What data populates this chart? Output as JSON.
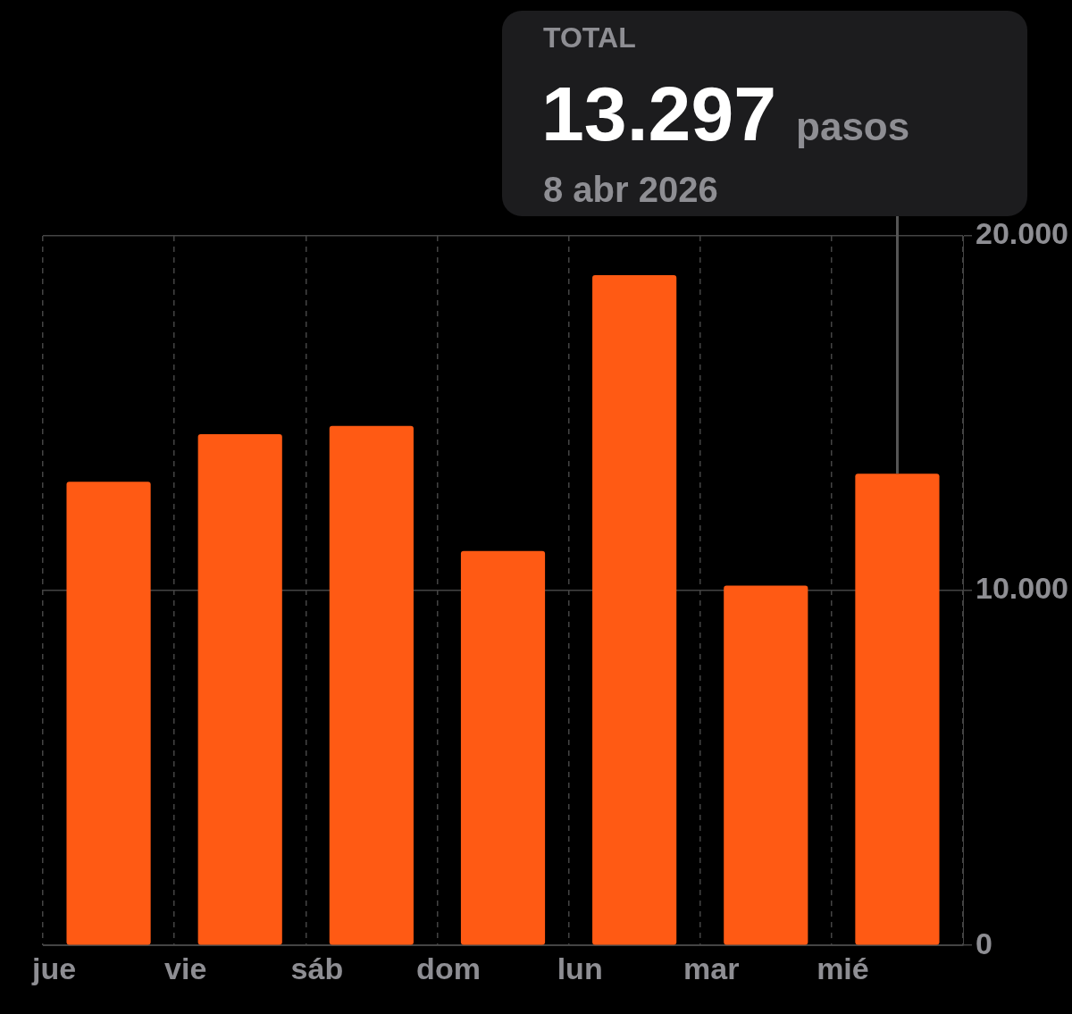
{
  "chart_data": {
    "type": "bar",
    "categories": [
      "jue",
      "vie",
      "sáb",
      "dom",
      "lun",
      "mar",
      "mié"
    ],
    "values": [
      13070,
      14410,
      14640,
      11120,
      18890,
      10140,
      13297
    ],
    "color": "#ff5a14",
    "ylim": [
      0,
      20000
    ],
    "yticks": [
      {
        "value": 0,
        "label": "0"
      },
      {
        "value": 10000,
        "label": "10.000"
      },
      {
        "value": 20000,
        "label": "20.000"
      }
    ],
    "grid": true,
    "legend": false,
    "annotations": [
      "TOTAL",
      "13.297",
      "pasos",
      "8 abr 2026"
    ]
  }
}
